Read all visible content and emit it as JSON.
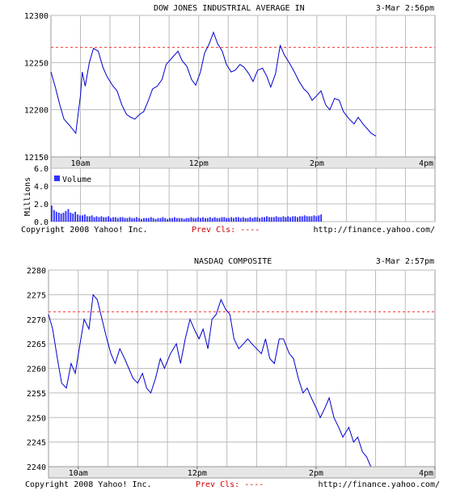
{
  "chart_data": [
    {
      "type": "line",
      "title": "DOW JONES INDUSTRIAL AVERAGE IN",
      "timestamp": "3-Mar 2:56pm",
      "x_ticks": [
        "10am",
        "12pm",
        "2pm",
        "4pm"
      ],
      "x_tick_hours": [
        10,
        12,
        14,
        16
      ],
      "x_range": [
        9.5,
        16
      ],
      "y_range": [
        12150,
        12300
      ],
      "y_ticks": [
        12150,
        12200,
        12250,
        12300
      ],
      "prev_close": 12266,
      "grid": true,
      "line_color": "#0000cc",
      "series": [
        {
          "x": [
            9.5,
            9.57,
            9.65,
            9.72,
            9.82,
            9.92,
            10.0,
            10.03,
            10.08,
            10.15,
            10.22,
            10.3,
            10.38,
            10.45,
            10.55,
            10.62,
            10.7,
            10.78,
            10.85,
            10.92,
            11.0,
            11.07,
            11.15,
            11.22,
            11.3,
            11.38,
            11.45,
            11.55,
            11.65,
            11.72,
            11.8,
            11.88,
            11.95,
            12.03,
            12.1,
            12.18,
            12.25,
            12.32,
            12.4,
            12.47,
            12.55,
            12.62,
            12.7,
            12.77,
            12.85,
            12.92,
            13.0,
            13.08,
            13.15,
            13.22,
            13.3,
            13.38,
            13.45,
            13.55,
            13.62,
            13.7,
            13.78,
            13.85,
            13.92,
            14.0,
            14.07,
            14.15,
            14.22,
            14.3,
            14.38,
            14.45,
            14.55,
            14.63,
            14.7,
            14.78,
            14.85,
            14.92,
            15.0
          ],
          "y": [
            12240,
            12225,
            12205,
            12190,
            12183,
            12175,
            12215,
            12240,
            12225,
            12250,
            12265,
            12262,
            12245,
            12235,
            12225,
            12220,
            12205,
            12195,
            12192,
            12190,
            12195,
            12198,
            12210,
            12222,
            12225,
            12232,
            12248,
            12255,
            12262,
            12252,
            12246,
            12232,
            12226,
            12240,
            12260,
            12270,
            12282,
            12270,
            12262,
            12248,
            12240,
            12242,
            12248,
            12245,
            12238,
            12230,
            12242,
            12244,
            12236,
            12224,
            12238,
            12268,
            12258,
            12248,
            12240,
            12230,
            12222,
            12218,
            12210,
            12215,
            12220,
            12205,
            12200,
            12212,
            12210,
            12198,
            12190,
            12185,
            12192,
            12185,
            12180,
            12175,
            12172
          ]
        }
      ],
      "volume": {
        "label": "Volume",
        "axis_label": "Millions",
        "y_range": [
          0,
          6
        ],
        "y_ticks": [
          "0.0",
          "2.0",
          "4.0",
          "6.0"
        ],
        "y_tick_values": [
          0,
          2,
          4,
          6
        ],
        "bar_color": "#3333ff",
        "start_hour": 9.5,
        "step_hours": 0.04,
        "values": [
          1.8,
          1.3,
          1.1,
          1.0,
          0.9,
          1.0,
          1.2,
          1.4,
          1.0,
          0.9,
          1.1,
          0.8,
          0.7,
          0.7,
          0.8,
          0.6,
          0.6,
          0.7,
          0.5,
          0.6,
          0.5,
          0.6,
          0.5,
          0.5,
          0.6,
          0.4,
          0.5,
          0.5,
          0.4,
          0.5,
          0.5,
          0.4,
          0.4,
          0.5,
          0.4,
          0.4,
          0.5,
          0.4,
          0.3,
          0.4,
          0.4,
          0.4,
          0.5,
          0.4,
          0.3,
          0.4,
          0.4,
          0.5,
          0.4,
          0.3,
          0.4,
          0.4,
          0.5,
          0.4,
          0.4,
          0.4,
          0.3,
          0.4,
          0.4,
          0.5,
          0.4,
          0.4,
          0.5,
          0.4,
          0.5,
          0.4,
          0.4,
          0.5,
          0.4,
          0.5,
          0.4,
          0.4,
          0.5,
          0.5,
          0.4,
          0.4,
          0.5,
          0.4,
          0.5,
          0.5,
          0.4,
          0.5,
          0.4,
          0.4,
          0.5,
          0.4,
          0.5,
          0.5,
          0.4,
          0.5,
          0.5,
          0.6,
          0.5,
          0.5,
          0.5,
          0.6,
          0.5,
          0.5,
          0.6,
          0.5,
          0.6,
          0.5,
          0.6,
          0.6,
          0.5,
          0.6,
          0.6,
          0.7,
          0.6,
          0.6,
          0.6,
          0.7,
          0.6,
          0.7,
          0.8
        ]
      },
      "footer": {
        "copyright": "Copyright 2008 Yahoo! Inc.",
        "prev_cls": "Prev Cls: ----",
        "url": "http://finance.yahoo.com/"
      }
    },
    {
      "type": "line",
      "title": "NASDAQ COMPOSITE",
      "timestamp": "3-Mar 2:57pm",
      "x_ticks": [
        "10am",
        "12pm",
        "2pm",
        "4pm"
      ],
      "x_tick_hours": [
        10,
        12,
        14,
        16
      ],
      "x_range": [
        9.5,
        16
      ],
      "y_range": [
        2240,
        2280
      ],
      "y_ticks": [
        2240,
        2245,
        2250,
        2255,
        2260,
        2265,
        2270,
        2275,
        2280
      ],
      "prev_close": 2271.5,
      "grid": true,
      "line_color": "#0000cc",
      "series": [
        {
          "x": [
            9.5,
            9.57,
            9.65,
            9.72,
            9.8,
            9.88,
            9.95,
            10.03,
            10.1,
            10.18,
            10.25,
            10.32,
            10.4,
            10.48,
            10.55,
            10.62,
            10.7,
            10.78,
            10.85,
            10.92,
            11.0,
            11.08,
            11.15,
            11.22,
            11.3,
            11.38,
            11.45,
            11.55,
            11.65,
            11.72,
            11.8,
            11.88,
            11.95,
            12.03,
            12.1,
            12.18,
            12.25,
            12.32,
            12.4,
            12.48,
            12.55,
            12.62,
            12.7,
            12.78,
            12.85,
            12.92,
            13.0,
            13.08,
            13.15,
            13.22,
            13.3,
            13.38,
            13.45,
            13.55,
            13.62,
            13.7,
            13.78,
            13.85,
            13.92,
            14.0,
            14.07,
            14.15,
            14.22,
            14.3,
            14.38,
            14.45,
            14.55,
            14.63,
            14.7,
            14.78,
            14.85,
            14.92,
            15.0
          ],
          "y": [
            2271,
            2268,
            2262,
            2257,
            2256,
            2261,
            2259,
            2265,
            2270,
            2268,
            2275,
            2274,
            2270,
            2266,
            2263,
            2261,
            2264,
            2262,
            2260,
            2258,
            2257,
            2259,
            2256,
            2255,
            2258,
            2262,
            2260,
            2263,
            2265,
            2261,
            2266,
            2270,
            2268,
            2266,
            2268,
            2264,
            2270,
            2271,
            2274,
            2272,
            2271,
            2266,
            2264,
            2265,
            2266,
            2265,
            2264,
            2263,
            2266,
            2262,
            2261,
            2266,
            2266,
            2263,
            2262,
            2258,
            2255,
            2256,
            2254,
            2252,
            2250,
            2252,
            2254,
            2250,
            2248,
            2246,
            2248,
            2245,
            2246,
            2243,
            2242,
            2240,
            2240
          ]
        }
      ],
      "footer": {
        "copyright": "Copyright 2008 Yahoo! Inc.",
        "prev_cls": "Prev Cls: ----",
        "url": "http://finance.yahoo.com/"
      }
    }
  ]
}
